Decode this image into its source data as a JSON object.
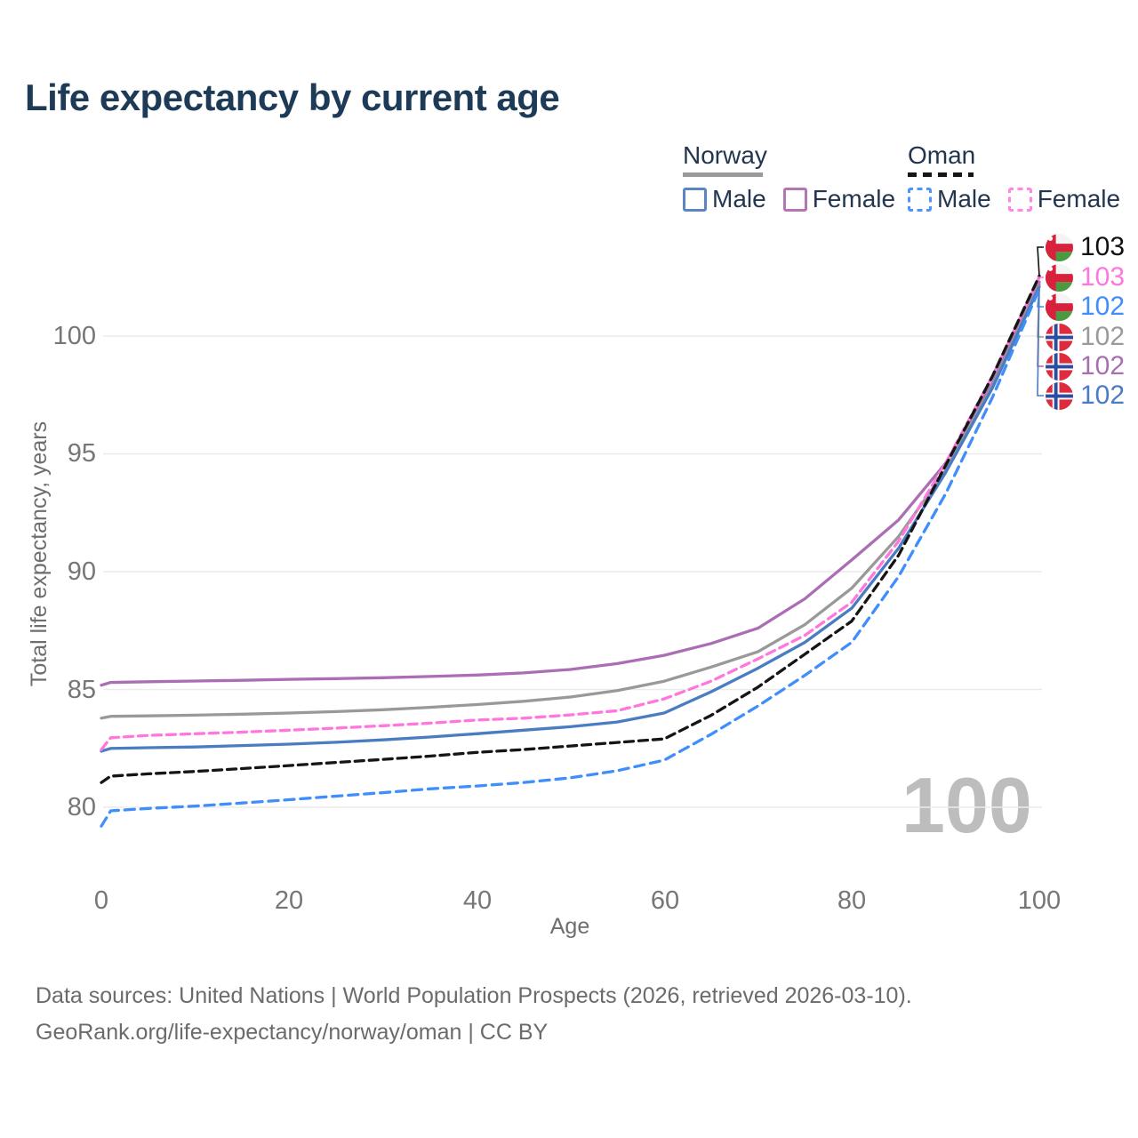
{
  "title": "Life expectancy by current age",
  "legend": {
    "groups": [
      {
        "country": "Norway",
        "line_style": "solid",
        "underline_color": "#9a9a9a",
        "items": [
          {
            "label": "Male",
            "color": "#5b86c3",
            "dashed": false
          },
          {
            "label": "Female",
            "color": "#b575b5",
            "dashed": false
          }
        ]
      },
      {
        "country": "Oman",
        "line_style": "dashed",
        "underline_color": "#151515",
        "items": [
          {
            "label": "Male",
            "color": "#4d94ff",
            "dashed": true
          },
          {
            "label": "Female",
            "color": "#ff85e6",
            "dashed": true
          }
        ]
      }
    ]
  },
  "y_axis": {
    "label": "Total life expectancy, years",
    "ticks": [
      "100",
      "95",
      "90",
      "85",
      "80"
    ]
  },
  "x_axis": {
    "label": "Age",
    "ticks": [
      "0",
      "20",
      "40",
      "60",
      "80",
      "100"
    ]
  },
  "watermark": "100",
  "end_labels": [
    {
      "flag": "oman",
      "value": "103",
      "color": "#111111",
      "series": "oman_total"
    },
    {
      "flag": "oman",
      "value": "103",
      "color": "#ff77dd",
      "series": "oman_female"
    },
    {
      "flag": "oman",
      "value": "102",
      "color": "#3f8efc",
      "series": "oman_male"
    },
    {
      "flag": "norway",
      "value": "102",
      "color": "#9a9a9a",
      "series": "norway_total"
    },
    {
      "flag": "norway",
      "value": "102",
      "color": "#a96fb0",
      "series": "norway_female"
    },
    {
      "flag": "norway",
      "value": "102",
      "color": "#4a7cc2",
      "series": "norway_male"
    }
  ],
  "footer": {
    "line1": "Data sources: United Nations | World Population Prospects (2026, retrieved 2026-03-10).",
    "line2": "GeoRank.org/life-expectancy/norway/oman | CC BY"
  },
  "chart_data": {
    "type": "line",
    "title": "Life expectancy by current age",
    "xlabel": "Age",
    "ylabel": "Total life expectancy, years",
    "xlim": [
      0,
      100
    ],
    "ylim": [
      78.5,
      103.5
    ],
    "x_ticks": [
      0,
      20,
      40,
      60,
      80,
      100
    ],
    "y_ticks": [
      80,
      85,
      90,
      95,
      100
    ],
    "grid": "horizontal",
    "legend_position": "top-right",
    "series": [
      {
        "name": "norway_female",
        "country": "Norway",
        "sex": "Female",
        "color": "#ab6db3",
        "dasharray": "",
        "points": [
          [
            0,
            85.18
          ],
          [
            1,
            85.3
          ],
          [
            5,
            85.33
          ],
          [
            10,
            85.36
          ],
          [
            15,
            85.39
          ],
          [
            20,
            85.43
          ],
          [
            25,
            85.46
          ],
          [
            30,
            85.5
          ],
          [
            35,
            85.55
          ],
          [
            40,
            85.61
          ],
          [
            45,
            85.7
          ],
          [
            50,
            85.85
          ],
          [
            55,
            86.1
          ],
          [
            60,
            86.45
          ],
          [
            65,
            86.95
          ],
          [
            70,
            87.6
          ],
          [
            75,
            88.85
          ],
          [
            80,
            90.5
          ],
          [
            85,
            92.2
          ],
          [
            90,
            94.6
          ],
          [
            95,
            98.0
          ],
          [
            100,
            102.3
          ]
        ]
      },
      {
        "name": "norway_total",
        "country": "Norway",
        "sex": "Both",
        "color": "#999999",
        "dasharray": "",
        "points": [
          [
            0,
            83.78
          ],
          [
            1,
            83.86
          ],
          [
            5,
            83.88
          ],
          [
            10,
            83.91
          ],
          [
            15,
            83.95
          ],
          [
            20,
            84.0
          ],
          [
            25,
            84.06
          ],
          [
            30,
            84.14
          ],
          [
            35,
            84.24
          ],
          [
            40,
            84.36
          ],
          [
            45,
            84.5
          ],
          [
            50,
            84.68
          ],
          [
            55,
            84.95
          ],
          [
            60,
            85.35
          ],
          [
            65,
            85.95
          ],
          [
            70,
            86.6
          ],
          [
            75,
            87.75
          ],
          [
            80,
            89.3
          ],
          [
            85,
            91.5
          ],
          [
            90,
            94.3
          ],
          [
            95,
            97.9
          ],
          [
            100,
            102.2
          ]
        ]
      },
      {
        "name": "norway_male",
        "country": "Norway",
        "sex": "Male",
        "color": "#4a7cc2",
        "dasharray": "",
        "points": [
          [
            0,
            82.38
          ],
          [
            1,
            82.5
          ],
          [
            5,
            82.53
          ],
          [
            10,
            82.56
          ],
          [
            15,
            82.62
          ],
          [
            20,
            82.68
          ],
          [
            25,
            82.76
          ],
          [
            30,
            82.86
          ],
          [
            35,
            82.98
          ],
          [
            40,
            83.12
          ],
          [
            45,
            83.27
          ],
          [
            50,
            83.42
          ],
          [
            55,
            83.62
          ],
          [
            60,
            84.0
          ],
          [
            65,
            84.9
          ],
          [
            70,
            85.9
          ],
          [
            75,
            87.0
          ],
          [
            80,
            88.45
          ],
          [
            85,
            91.0
          ],
          [
            90,
            94.2
          ],
          [
            95,
            97.8
          ],
          [
            100,
            102.1
          ]
        ]
      },
      {
        "name": "oman_female",
        "country": "Oman",
        "sex": "Female",
        "color": "#ff77dd",
        "dasharray": "10 6",
        "points": [
          [
            0,
            82.45
          ],
          [
            1,
            82.95
          ],
          [
            5,
            83.05
          ],
          [
            10,
            83.12
          ],
          [
            15,
            83.19
          ],
          [
            20,
            83.27
          ],
          [
            25,
            83.36
          ],
          [
            30,
            83.46
          ],
          [
            35,
            83.57
          ],
          [
            40,
            83.7
          ],
          [
            45,
            83.78
          ],
          [
            50,
            83.92
          ],
          [
            55,
            84.1
          ],
          [
            60,
            84.6
          ],
          [
            65,
            85.35
          ],
          [
            70,
            86.3
          ],
          [
            75,
            87.3
          ],
          [
            80,
            88.7
          ],
          [
            85,
            91.3
          ],
          [
            90,
            94.6
          ],
          [
            95,
            98.3
          ],
          [
            100,
            102.5
          ]
        ]
      },
      {
        "name": "oman_total",
        "country": "Oman",
        "sex": "Both",
        "color": "#151515",
        "dasharray": "10 6",
        "points": [
          [
            0,
            81.05
          ],
          [
            1,
            81.32
          ],
          [
            5,
            81.42
          ],
          [
            10,
            81.52
          ],
          [
            15,
            81.64
          ],
          [
            20,
            81.77
          ],
          [
            25,
            81.9
          ],
          [
            30,
            82.03
          ],
          [
            35,
            82.17
          ],
          [
            40,
            82.33
          ],
          [
            45,
            82.45
          ],
          [
            50,
            82.6
          ],
          [
            55,
            82.75
          ],
          [
            60,
            82.9
          ],
          [
            65,
            83.9
          ],
          [
            70,
            85.1
          ],
          [
            75,
            86.5
          ],
          [
            80,
            87.9
          ],
          [
            85,
            90.7
          ],
          [
            90,
            94.5
          ],
          [
            95,
            98.3
          ],
          [
            100,
            102.55
          ]
        ]
      },
      {
        "name": "oman_male",
        "country": "Oman",
        "sex": "Male",
        "color": "#3f8efc",
        "dasharray": "11 7",
        "points": [
          [
            0,
            79.2
          ],
          [
            1,
            79.85
          ],
          [
            5,
            79.95
          ],
          [
            10,
            80.05
          ],
          [
            15,
            80.18
          ],
          [
            20,
            80.32
          ],
          [
            25,
            80.47
          ],
          [
            30,
            80.62
          ],
          [
            35,
            80.78
          ],
          [
            40,
            80.9
          ],
          [
            45,
            81.05
          ],
          [
            50,
            81.25
          ],
          [
            55,
            81.55
          ],
          [
            60,
            82.0
          ],
          [
            65,
            83.1
          ],
          [
            70,
            84.3
          ],
          [
            75,
            85.6
          ],
          [
            80,
            87.0
          ],
          [
            85,
            89.8
          ],
          [
            90,
            93.3
          ],
          [
            95,
            97.4
          ],
          [
            100,
            102.0
          ]
        ]
      }
    ]
  }
}
